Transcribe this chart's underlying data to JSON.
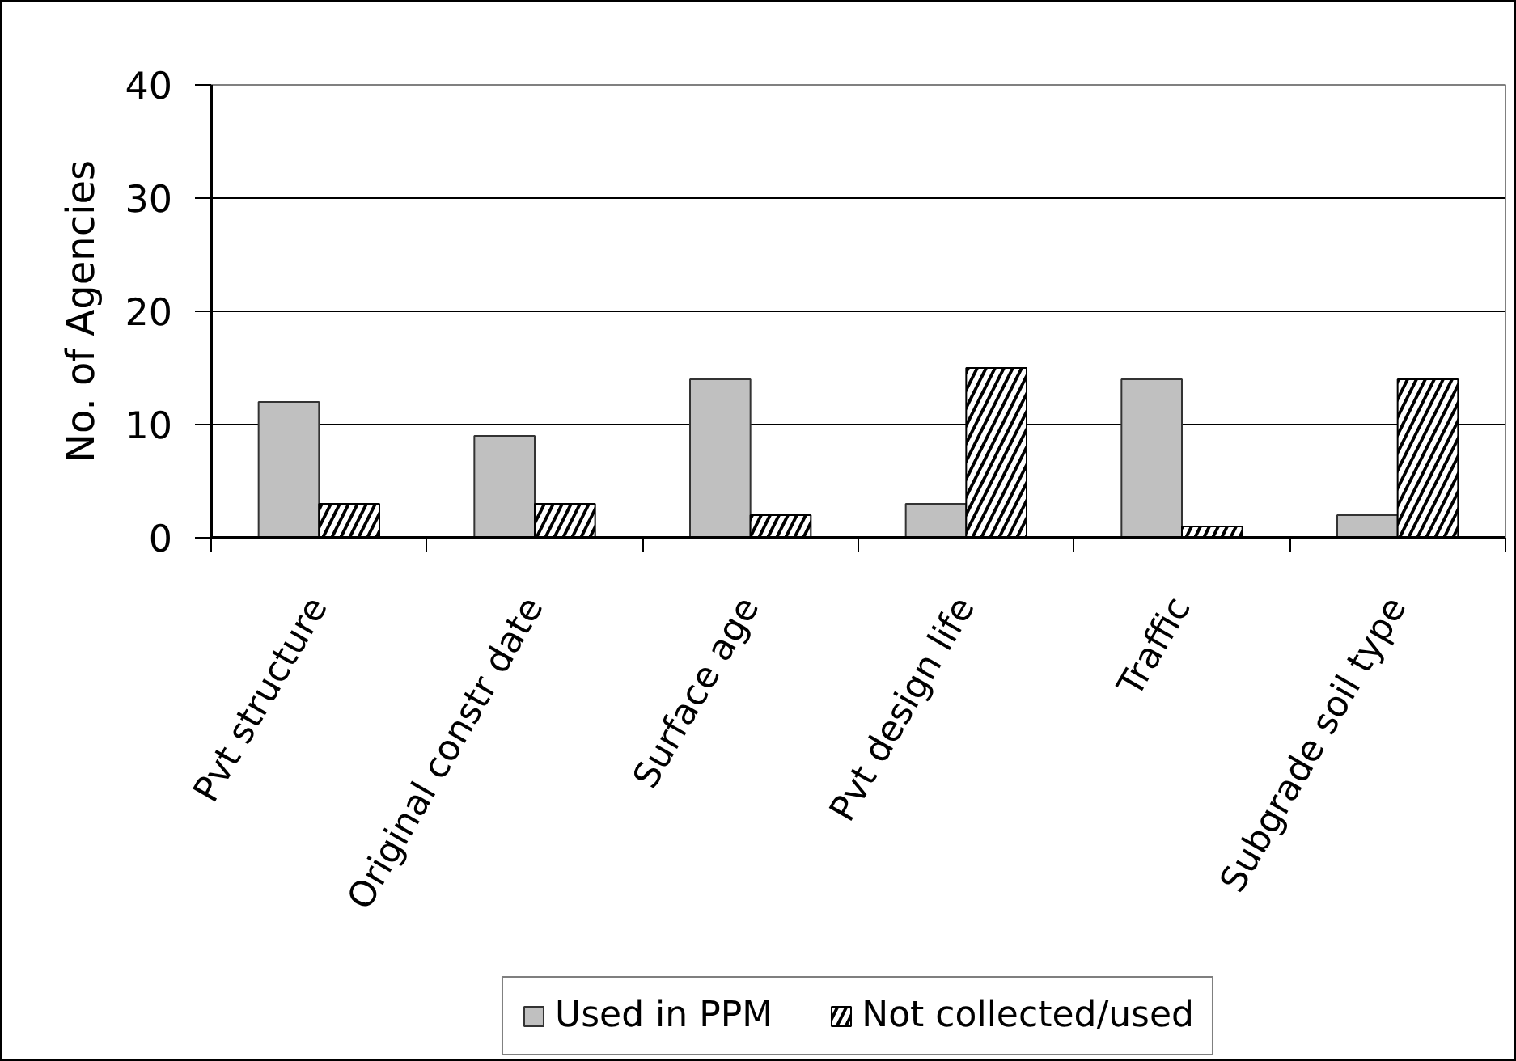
{
  "chart_data": {
    "type": "bar",
    "ylabel": "No. of Agencies",
    "categories": [
      "Pvt structure",
      "Original constr date",
      "Surface age",
      "Pvt design life",
      "Traffic",
      "Subgrade soil type"
    ],
    "series": [
      {
        "name": "Used in PPM",
        "color": "#c0c0c0",
        "values": [
          12,
          9,
          14,
          3,
          14,
          2
        ]
      },
      {
        "name": "Not collected/used",
        "color": "#000000",
        "values": [
          3,
          3,
          2,
          15,
          1,
          14
        ]
      }
    ],
    "ylim": [
      0,
      40
    ],
    "yticks": [
      0,
      10,
      20,
      30,
      40
    ],
    "grid": "y",
    "legend": "bottom"
  }
}
